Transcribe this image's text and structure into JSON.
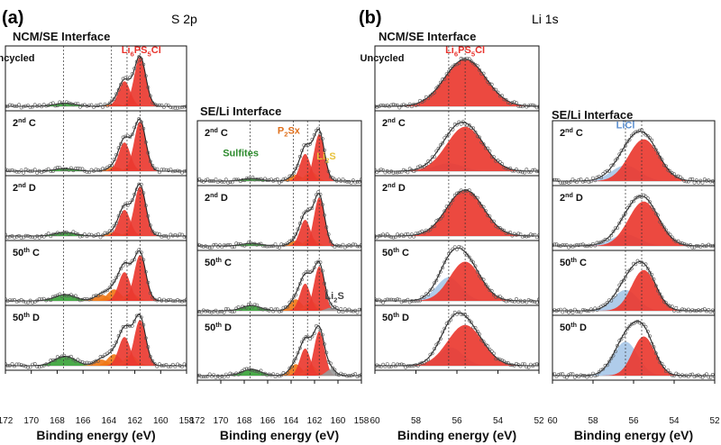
{
  "figure": {
    "panel_a_label": "(a)",
    "panel_b_label": "(b)",
    "s2p_title": "S 2p",
    "li1s_title": "Li 1s"
  },
  "chart_data": [
    {
      "id": "a-ncm",
      "type": "line",
      "title": "NCM/SE Interface",
      "xlabel": "Binding energy (eV)",
      "xlim": [
        172,
        158
      ],
      "xticks": [
        172,
        170,
        168,
        166,
        164,
        162,
        160,
        158
      ],
      "guides": [
        167.5,
        163.8,
        162.6,
        161.6
      ],
      "rows": [
        {
          "label": "Uncycled",
          "annot": [
            {
              "text": "Li6PS5Cl",
              "x": 161.5,
              "color": "#e8322c"
            }
          ],
          "peaks": [
            {
              "name": "Sulfites",
              "color": "#3aa33a",
              "center": 167.4,
              "sigma": 0.8,
              "amp": 0.06
            },
            {
              "name": "P2Sx",
              "color": "#f07818",
              "center": 163.6,
              "sigma": 0.5,
              "amp": 0.05
            },
            {
              "name": "Li6PS5Cl",
              "color": "#ea3a30",
              "center": 161.6,
              "sigma": 0.45,
              "amp": 0.95
            },
            {
              "name": "Li6PS5Cl",
              "color": "#ea3a30",
              "center": 162.8,
              "sigma": 0.45,
              "amp": 0.48
            }
          ]
        },
        {
          "label": "2nd C",
          "peaks": [
            {
              "name": "Sulfites",
              "color": "#3aa33a",
              "center": 167.4,
              "sigma": 0.8,
              "amp": 0.05
            },
            {
              "name": "P2Sx",
              "color": "#f07818",
              "center": 163.6,
              "sigma": 0.5,
              "amp": 0.08
            },
            {
              "name": "Li2S",
              "color": "#e8c23a",
              "center": 162.3,
              "sigma": 0.5,
              "amp": 0.08
            },
            {
              "name": "Li6PS5Cl",
              "color": "#ea3a30",
              "center": 161.6,
              "sigma": 0.45,
              "amp": 0.95
            },
            {
              "name": "Li6PS5Cl",
              "color": "#ea3a30",
              "center": 162.8,
              "sigma": 0.45,
              "amp": 0.55
            }
          ]
        },
        {
          "label": "2nd D",
          "peaks": [
            {
              "name": "Sulfites",
              "color": "#3aa33a",
              "center": 167.4,
              "sigma": 0.8,
              "amp": 0.07
            },
            {
              "name": "P2Sx",
              "color": "#f07818",
              "center": 163.6,
              "sigma": 0.5,
              "amp": 0.07
            },
            {
              "name": "Li2S",
              "color": "#e8c23a",
              "center": 162.3,
              "sigma": 0.5,
              "amp": 0.08
            },
            {
              "name": "Li6PS5Cl",
              "color": "#ea3a30",
              "center": 161.6,
              "sigma": 0.45,
              "amp": 0.95
            },
            {
              "name": "Li6PS5Cl",
              "color": "#ea3a30",
              "center": 162.8,
              "sigma": 0.45,
              "amp": 0.5
            }
          ]
        },
        {
          "label": "50th C",
          "peaks": [
            {
              "name": "Sulfites",
              "color": "#3aa33a",
              "center": 167.4,
              "sigma": 0.8,
              "amp": 0.12
            },
            {
              "name": "P2Sx",
              "color": "#f07818",
              "center": 164.6,
              "sigma": 0.5,
              "amp": 0.12
            },
            {
              "name": "P2Sx",
              "color": "#f07818",
              "center": 163.6,
              "sigma": 0.5,
              "amp": 0.22
            },
            {
              "name": "Li2S",
              "color": "#e8c23a",
              "center": 162.3,
              "sigma": 0.5,
              "amp": 0.15
            },
            {
              "name": "Li6PS5Cl",
              "color": "#ea3a30",
              "center": 161.6,
              "sigma": 0.45,
              "amp": 0.88
            },
            {
              "name": "Li6PS5Cl",
              "color": "#ea3a30",
              "center": 162.8,
              "sigma": 0.45,
              "amp": 0.55
            }
          ]
        },
        {
          "label": "50th D",
          "peaks": [
            {
              "name": "Sulfites",
              "color": "#3aa33a",
              "center": 167.4,
              "sigma": 0.8,
              "amp": 0.18
            },
            {
              "name": "P2Sx",
              "color": "#f07818",
              "center": 164.6,
              "sigma": 0.5,
              "amp": 0.12
            },
            {
              "name": "P2Sx",
              "color": "#f07818",
              "center": 163.6,
              "sigma": 0.5,
              "amp": 0.22
            },
            {
              "name": "Li2S",
              "color": "#e8c23a",
              "center": 162.3,
              "sigma": 0.5,
              "amp": 0.2
            },
            {
              "name": "Li6PS5Cl",
              "color": "#ea3a30",
              "center": 161.6,
              "sigma": 0.45,
              "amp": 0.88
            },
            {
              "name": "Li6PS5Cl",
              "color": "#ea3a30",
              "center": 162.8,
              "sigma": 0.45,
              "amp": 0.55
            }
          ]
        }
      ]
    },
    {
      "id": "a-seli",
      "type": "line",
      "title": "SE/Li Interface",
      "xlabel": "Binding energy (eV)",
      "xlim": [
        172,
        158
      ],
      "xticks": [
        172,
        170,
        168,
        166,
        164,
        162,
        160,
        158
      ],
      "guides": [
        167.5,
        163.8,
        162.6,
        161.6
      ],
      "rows": [
        {
          "label": "2nd C",
          "annot": [
            {
              "text": "Sulfites",
              "x": 168.3,
              "color": "#2e8b2e",
              "row": 0.55
            },
            {
              "text": "P2Sx",
              "x": 164.2,
              "color": "#e0701c",
              "row": 0.2
            },
            {
              "text": "Li2S",
              "x": 161.0,
              "color": "#e8c23a",
              "row": 0.6
            }
          ],
          "peaks": [
            {
              "name": "Sulfites",
              "color": "#3aa33a",
              "center": 167.4,
              "sigma": 0.8,
              "amp": 0.05
            },
            {
              "name": "P2Sx",
              "color": "#f07818",
              "center": 163.6,
              "sigma": 0.5,
              "amp": 0.12
            },
            {
              "name": "Li2S",
              "color": "#e8c23a",
              "center": 162.3,
              "sigma": 0.5,
              "amp": 0.18
            },
            {
              "name": "Li6PS5Cl",
              "color": "#ea3a30",
              "center": 161.6,
              "sigma": 0.45,
              "amp": 0.9
            },
            {
              "name": "Li6PS5Cl",
              "color": "#ea3a30",
              "center": 162.8,
              "sigma": 0.45,
              "amp": 0.52
            }
          ]
        },
        {
          "label": "2nd D",
          "peaks": [
            {
              "name": "Sulfites",
              "color": "#3aa33a",
              "center": 167.4,
              "sigma": 0.8,
              "amp": 0.05
            },
            {
              "name": "P2Sx",
              "color": "#f07818",
              "center": 163.6,
              "sigma": 0.5,
              "amp": 0.1
            },
            {
              "name": "Li2S",
              "color": "#e8c23a",
              "center": 162.3,
              "sigma": 0.5,
              "amp": 0.15
            },
            {
              "name": "Li6PS5Cl",
              "color": "#ea3a30",
              "center": 161.6,
              "sigma": 0.45,
              "amp": 0.93
            },
            {
              "name": "Li6PS5Cl",
              "color": "#ea3a30",
              "center": 162.8,
              "sigma": 0.45,
              "amp": 0.5
            }
          ]
        },
        {
          "label": "50th C",
          "annot": [
            {
              "text": "Li2S",
              "x": 160.3,
              "color": "#444444",
              "row": 0.75
            }
          ],
          "peaks": [
            {
              "name": "Sulfites",
              "color": "#3aa33a",
              "center": 167.4,
              "sigma": 0.8,
              "amp": 0.1
            },
            {
              "name": "P2Sx",
              "color": "#f07818",
              "center": 163.6,
              "sigma": 0.5,
              "amp": 0.22
            },
            {
              "name": "Li2S",
              "color": "#e8c23a",
              "center": 162.3,
              "sigma": 0.5,
              "amp": 0.18
            },
            {
              "name": "Li6PS5Cl",
              "color": "#ea3a30",
              "center": 161.6,
              "sigma": 0.45,
              "amp": 0.85
            },
            {
              "name": "Li6PS5Cl",
              "color": "#ea3a30",
              "center": 162.8,
              "sigma": 0.45,
              "amp": 0.52
            },
            {
              "name": "Li2S",
              "color": "#9a9a9a",
              "center": 160.6,
              "sigma": 0.4,
              "amp": 0.06
            }
          ]
        },
        {
          "label": "50th D",
          "peaks": [
            {
              "name": "Sulfites",
              "color": "#3aa33a",
              "center": 167.4,
              "sigma": 0.8,
              "amp": 0.12
            },
            {
              "name": "P2Sx",
              "color": "#f07818",
              "center": 163.6,
              "sigma": 0.5,
              "amp": 0.22
            },
            {
              "name": "Li2S",
              "color": "#e8c23a",
              "center": 162.3,
              "sigma": 0.5,
              "amp": 0.2
            },
            {
              "name": "Li6PS5Cl",
              "color": "#ea3a30",
              "center": 161.6,
              "sigma": 0.45,
              "amp": 0.85
            },
            {
              "name": "Li6PS5Cl",
              "color": "#ea3a30",
              "center": 162.8,
              "sigma": 0.45,
              "amp": 0.52
            },
            {
              "name": "Li2S",
              "color": "#9a9a9a",
              "center": 160.6,
              "sigma": 0.4,
              "amp": 0.12
            }
          ]
        }
      ]
    },
    {
      "id": "b-ncm",
      "type": "line",
      "title": "NCM/SE Interface",
      "xlabel": "Binding energy (eV)",
      "xlim": [
        60,
        52
      ],
      "xticks": [
        60,
        58,
        56,
        54,
        52
      ],
      "guides": [
        56.4,
        55.6
      ],
      "rows": [
        {
          "label": "Uncycled",
          "annot": [
            {
              "text": "Li6PS5Cl",
              "x": 55.6,
              "color": "#e8322c"
            }
          ],
          "peaks": [
            {
              "name": "Li6PS5Cl",
              "color": "#ea3a30",
              "center": 55.6,
              "sigma": 1.0,
              "amp": 0.9
            }
          ]
        },
        {
          "label": "2nd C",
          "peaks": [
            {
              "name": "LiCl",
              "color": "#a8c8e8",
              "center": 56.4,
              "sigma": 0.7,
              "amp": 0.15
            },
            {
              "name": "Li6PS5Cl",
              "color": "#ea3a30",
              "center": 55.6,
              "sigma": 0.9,
              "amp": 0.85
            }
          ]
        },
        {
          "label": "2nd D",
          "peaks": [
            {
              "name": "Li6PS5Cl",
              "color": "#ea3a30",
              "center": 55.6,
              "sigma": 0.9,
              "amp": 0.88
            }
          ]
        },
        {
          "label": "50th C",
          "peaks": [
            {
              "name": "LiCl",
              "color": "#a8c8e8",
              "center": 56.4,
              "sigma": 0.6,
              "amp": 0.45
            },
            {
              "name": "Li6PS5Cl",
              "color": "#ea3a30",
              "center": 55.6,
              "sigma": 0.75,
              "amp": 0.75
            }
          ]
        },
        {
          "label": "50th D",
          "peaks": [
            {
              "name": "LiCl",
              "color": "#a8c8e8",
              "center": 56.3,
              "sigma": 0.6,
              "amp": 0.35
            },
            {
              "name": "Li6PS5Cl",
              "color": "#ea3a30",
              "center": 55.6,
              "sigma": 0.85,
              "amp": 0.78
            }
          ]
        }
      ]
    },
    {
      "id": "b-seli",
      "type": "line",
      "title": "SE/Li Interface",
      "xlabel": "Binding energy (eV)",
      "xlim": [
        60,
        52
      ],
      "xticks": [
        60,
        58,
        56,
        54,
        52
      ],
      "guides": [
        56.4,
        55.6
      ],
      "rows": [
        {
          "label": "2nd C",
          "annot": [
            {
              "text": "LiCl",
              "x": 56.4,
              "color": "#5b8fd0",
              "row": 0.12
            }
          ],
          "peaks": [
            {
              "name": "LiCl",
              "color": "#a8c8e8",
              "center": 56.4,
              "sigma": 0.7,
              "amp": 0.3
            },
            {
              "name": "Li6PS5Cl",
              "color": "#ea3a30",
              "center": 55.5,
              "sigma": 0.75,
              "amp": 0.8
            }
          ]
        },
        {
          "label": "2nd D",
          "peaks": [
            {
              "name": "LiCl",
              "color": "#a8c8e8",
              "center": 56.4,
              "sigma": 0.7,
              "amp": 0.22
            },
            {
              "name": "Li6PS5Cl",
              "color": "#ea3a30",
              "center": 55.5,
              "sigma": 0.75,
              "amp": 0.85
            }
          ]
        },
        {
          "label": "50th C",
          "peaks": [
            {
              "name": "LiCl",
              "color": "#a8c8e8",
              "center": 56.4,
              "sigma": 0.6,
              "amp": 0.4
            },
            {
              "name": "Li6PS5Cl",
              "color": "#ea3a30",
              "center": 55.5,
              "sigma": 0.6,
              "amp": 0.78
            }
          ]
        },
        {
          "label": "50th D",
          "peaks": [
            {
              "name": "LiCl",
              "color": "#a8c8e8",
              "center": 56.4,
              "sigma": 0.6,
              "amp": 0.65
            },
            {
              "name": "Li6PS5Cl",
              "color": "#ea3a30",
              "center": 55.5,
              "sigma": 0.55,
              "amp": 0.75
            }
          ]
        }
      ]
    }
  ]
}
